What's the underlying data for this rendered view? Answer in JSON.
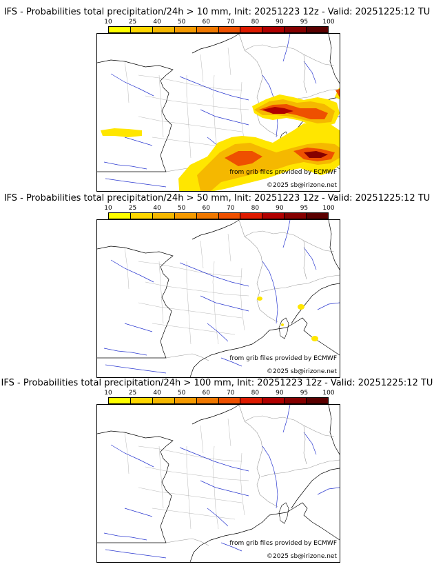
{
  "legend": {
    "ticks": [
      "10",
      "25",
      "40",
      "50",
      "60",
      "70",
      "80",
      "90",
      "95",
      "100"
    ],
    "colors": [
      "#ffff00",
      "#ffd700",
      "#f5b800",
      "#f59a00",
      "#f07800",
      "#ee5000",
      "#dd1a00",
      "#b00000",
      "#850000",
      "#5a0000"
    ]
  },
  "credits": {
    "source": "from grib files provided by ECMWF",
    "copyright": "©2025 sb@irizone.net"
  },
  "panels": [
    {
      "title": "IFS - Probabilities total precipitation/24h > 10 mm, Init: 20251223 12z - Valid: 20251225:12 TU"
    },
    {
      "title": "IFS - Probabilities total precipitation/24h > 50 mm, Init: 20251223 12z - Valid: 20251225:12 TU"
    },
    {
      "title": "IFS - Probabilities total precipitation/24h > 100 mm, Init: 20251223 12z - Valid: 20251225:12 TU"
    }
  ]
}
